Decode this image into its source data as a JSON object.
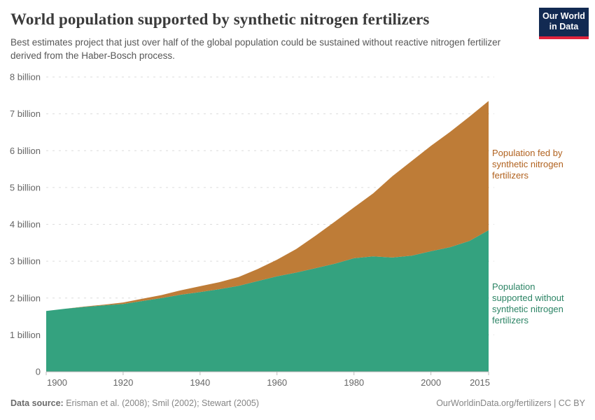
{
  "header": {
    "title": "World population supported by synthetic nitrogen fertilizers",
    "subtitle": "Best estimates project that just over half of the global population could be sustained without reactive nitrogen fertilizer derived from the Haber-Bosch process.",
    "logo": {
      "line1": "Our World",
      "line2": "in Data",
      "bg_color": "#122a52",
      "stripe_color": "#e0233c"
    }
  },
  "chart_data": {
    "type": "area",
    "stacked": true,
    "title": "World population supported by synthetic nitrogen fertilizers",
    "xlabel": "",
    "ylabel": "",
    "x": [
      1900,
      1905,
      1910,
      1915,
      1920,
      1925,
      1930,
      1935,
      1940,
      1945,
      1950,
      1955,
      1960,
      1965,
      1970,
      1975,
      1980,
      1985,
      1990,
      1995,
      2000,
      2005,
      2010,
      2015
    ],
    "series": [
      {
        "name": "Population supported without synthetic nitrogen fertilizers",
        "color": "#34a27f",
        "label_color": "#2c8465",
        "values": [
          1.65,
          1.71,
          1.76,
          1.8,
          1.84,
          1.92,
          2.0,
          2.09,
          2.16,
          2.24,
          2.33,
          2.46,
          2.59,
          2.69,
          2.81,
          2.93,
          3.08,
          3.13,
          3.1,
          3.15,
          3.27,
          3.38,
          3.55,
          3.84
        ]
      },
      {
        "name": "Population fed by synthetic nitrogen fertilizers",
        "color": "#be7c37",
        "label_color": "#b1621f",
        "values": [
          0,
          0,
          0.01,
          0.02,
          0.04,
          0.06,
          0.08,
          0.12,
          0.16,
          0.19,
          0.24,
          0.33,
          0.45,
          0.64,
          0.88,
          1.14,
          1.38,
          1.71,
          2.21,
          2.57,
          2.86,
          3.13,
          3.37,
          3.51
        ]
      }
    ],
    "xlim": [
      1900,
      2015
    ],
    "ylim": [
      0,
      8
    ],
    "xticks": [
      1900,
      1920,
      1940,
      1960,
      1980,
      2000,
      2015
    ],
    "ytick_values": [
      0,
      1,
      2,
      3,
      4,
      5,
      6,
      7,
      8
    ],
    "ytick_labels": [
      "0",
      "1 billion",
      "2 billion",
      "3 billion",
      "4 billion",
      "5 billion",
      "6 billion",
      "7 billion",
      "8 billion"
    ],
    "grid": "horizontal-dashed",
    "grid_color": "#dcdcdc",
    "axis_text_color": "#666666",
    "legend_position": "right-annotations"
  },
  "annotations": {
    "fed_label": "Population fed by synthetic nitrogen fertilizers",
    "without_label": "Population supported without synthetic nitrogen fertilizers"
  },
  "footer": {
    "source_label": "Data source:",
    "source_text": " Erisman et al. (2008); Smil (2002); Stewart (2005)",
    "link_text": "OurWorldinData.org/fertilizers | CC BY"
  }
}
